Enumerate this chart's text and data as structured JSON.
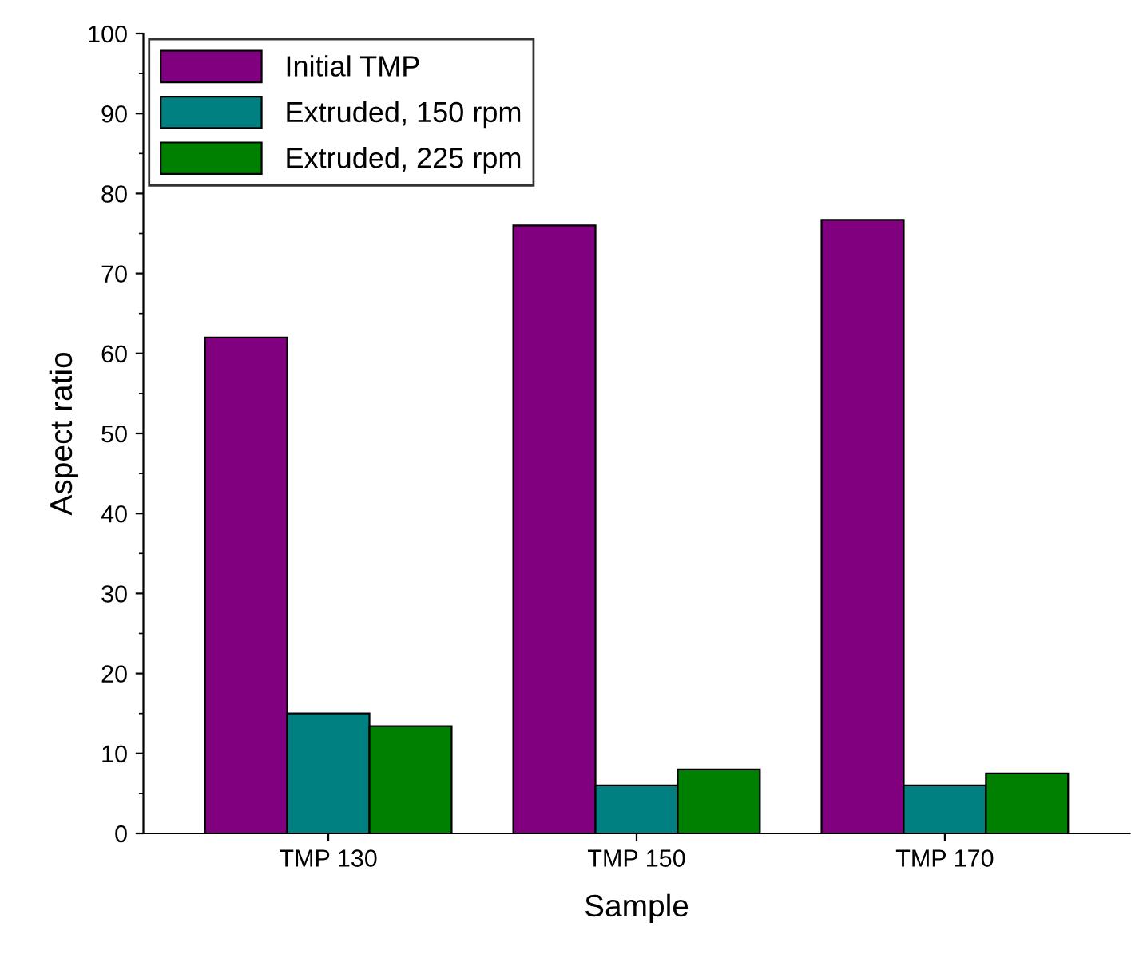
{
  "chart_data": {
    "type": "bar",
    "xlabel": "Sample",
    "ylabel": "Aspect ratio",
    "categories": [
      "TMP 130",
      "TMP 150",
      "TMP 170"
    ],
    "series": [
      {
        "name": "Initial TMP",
        "color": "#800080",
        "values": [
          62,
          76,
          76.7
        ]
      },
      {
        "name": "Extruded, 150 rpm",
        "color": "#008080",
        "values": [
          15,
          6,
          6
        ]
      },
      {
        "name": "Extruded, 225 rpm",
        "color": "#008000",
        "values": [
          13.4,
          8,
          7.5
        ]
      }
    ],
    "ylim": [
      0,
      100
    ],
    "yticks": [
      0,
      10,
      20,
      30,
      40,
      50,
      60,
      70,
      80,
      90,
      100
    ],
    "grid": false,
    "legend": "top left"
  }
}
